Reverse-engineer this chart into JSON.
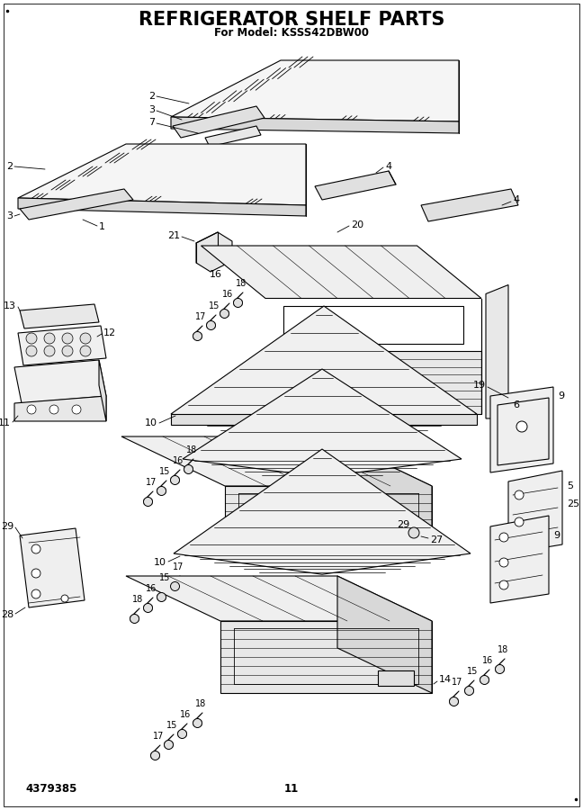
{
  "title": "REFRIGERATOR SHELF PARTS",
  "subtitle": "For Model: KSSS42DBW00",
  "page_number": "11",
  "part_number": "4379385",
  "bg": "#ffffff",
  "lc": "#000000",
  "lw": 0.8,
  "title_fs": 15,
  "sub_fs": 8.5
}
